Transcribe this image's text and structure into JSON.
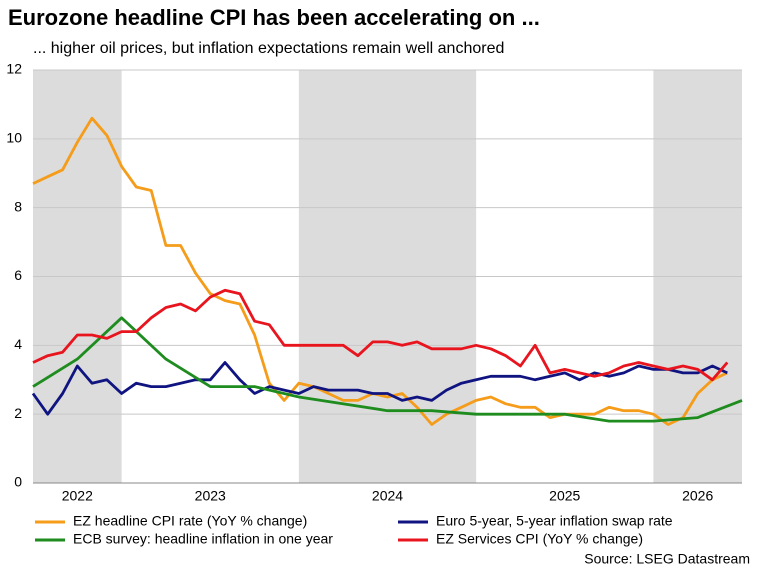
{
  "chart_data": {
    "type": "line",
    "title": "Eurozone headline CPI has been accelerating on ...",
    "subtitle": "... higher oil prices, but inflation expectations remain well anchored",
    "source": "Source: LSEG Datastream",
    "x": [
      2022.5,
      2022.583,
      2022.667,
      2022.75,
      2022.833,
      2022.917,
      2023,
      2023.083,
      2023.167,
      2023.25,
      2023.333,
      2023.417,
      2023.5,
      2023.583,
      2023.667,
      2023.75,
      2023.833,
      2023.917,
      2024,
      2024.083,
      2024.167,
      2024.25,
      2024.333,
      2024.417,
      2024.5,
      2024.583,
      2024.667,
      2024.75,
      2024.833,
      2024.917,
      2025,
      2025.083,
      2025.167,
      2025.25,
      2025.333,
      2025.417,
      2025.5,
      2025.583,
      2025.667,
      2025.75,
      2025.833,
      2025.917,
      2026,
      2026.083,
      2026.167,
      2026.25,
      2026.333,
      2026.417
    ],
    "series": [
      {
        "name": "EZ headline CPI rate (YoY % change)",
        "color": "#f59c1a",
        "values": [
          8.7,
          8.9,
          9.1,
          9.9,
          10.6,
          10.1,
          9.2,
          8.6,
          8.5,
          6.9,
          6.9,
          6.1,
          5.5,
          5.3,
          5.2,
          4.3,
          2.9,
          2.4,
          2.9,
          2.8,
          2.6,
          2.4,
          2.4,
          2.6,
          2.5,
          2.6,
          2.2,
          1.7,
          2.0,
          2.2,
          2.4,
          2.5,
          2.3,
          2.2,
          2.2,
          1.9,
          2.0,
          2.0,
          2.0,
          2.2,
          2.1,
          2.1,
          2.0,
          1.7,
          1.9,
          2.6,
          3.0,
          3.2
        ]
      },
      {
        "name": "Euro 5-year, 5-year inflation swap rate",
        "color": "#101480",
        "values": [
          2.6,
          2.0,
          2.6,
          3.4,
          2.9,
          3.0,
          2.6,
          2.9,
          2.8,
          2.8,
          2.9,
          3.0,
          3.0,
          3.5,
          3.0,
          2.6,
          2.8,
          2.7,
          2.6,
          2.8,
          2.7,
          2.7,
          2.7,
          2.6,
          2.6,
          2.4,
          2.5,
          2.4,
          2.7,
          2.9,
          3.0,
          3.1,
          3.1,
          3.1,
          3.0,
          3.1,
          3.2,
          3.0,
          3.2,
          3.1,
          3.2,
          3.4,
          3.3,
          3.3,
          3.2,
          3.2,
          3.4,
          3.2
        ]
      },
      {
        "name": "ECB survey: headline inflation in one year",
        "color": "#1e8c1e",
        "x": [
          2022.5,
          2022.75,
          2023,
          2023.25,
          2023.5,
          2023.75,
          2024,
          2024.5,
          2024.75,
          2025,
          2025.5,
          2025.75,
          2026,
          2026.25,
          2026.5
        ],
        "values": [
          2.8,
          3.6,
          4.8,
          3.6,
          2.8,
          2.8,
          2.5,
          2.1,
          2.1,
          2.0,
          2.0,
          1.8,
          1.8,
          1.9,
          2.4
        ]
      },
      {
        "name": "EZ Services CPI (YoY % change)",
        "color": "#e8141e",
        "values": [
          3.5,
          3.7,
          3.8,
          4.3,
          4.3,
          4.2,
          4.4,
          4.4,
          4.8,
          5.1,
          5.2,
          5.0,
          5.4,
          5.6,
          5.5,
          4.7,
          4.6,
          4.0,
          4.0,
          4.0,
          4.0,
          4.0,
          3.7,
          4.1,
          4.1,
          4.0,
          4.1,
          3.9,
          3.9,
          3.9,
          4.0,
          3.9,
          3.7,
          3.4,
          4.0,
          3.2,
          3.3,
          3.2,
          3.1,
          3.2,
          3.4,
          3.5,
          3.4,
          3.3,
          3.4,
          3.3,
          3.0,
          3.5
        ]
      }
    ],
    "xlim": [
      2022.5,
      2026.5
    ],
    "xticks": [
      {
        "value": 2022.75,
        "label": "2022"
      },
      {
        "value": 2023.5,
        "label": "2023"
      },
      {
        "value": 2024.5,
        "label": "2024"
      },
      {
        "value": 2025.5,
        "label": "2025"
      },
      {
        "value": 2026.25,
        "label": "2026"
      }
    ],
    "ylim": [
      0,
      12
    ],
    "yticks": [
      0,
      2,
      4,
      6,
      8,
      10,
      12
    ],
    "grid": true
  }
}
